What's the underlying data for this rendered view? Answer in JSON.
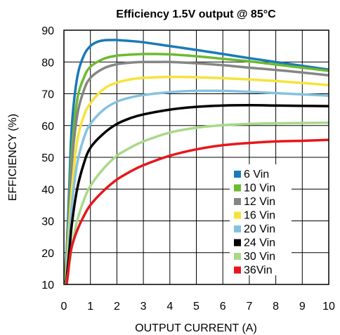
{
  "chart_data": {
    "type": "line",
    "title": "Efficiency 1.5V output @ 85°C",
    "xlabel": "OUTPUT CURRENT (A)",
    "ylabel": "EFFICIENCY (%)",
    "xlim": [
      0,
      10
    ],
    "ylim": [
      10,
      90
    ],
    "xticks": [
      "0",
      "1",
      "2",
      "3",
      "4",
      "5",
      "6",
      "7",
      "8",
      "9",
      "10"
    ],
    "yticks": [
      "10",
      "20",
      "30",
      "40",
      "50",
      "60",
      "70",
      "80",
      "90"
    ],
    "grid": true,
    "legend_position": "center-right",
    "series": [
      {
        "name": "6 Vin",
        "color": "#1a7ab8",
        "x": [
          0.05,
          0.1,
          0.2,
          0.3,
          0.5,
          0.75,
          1,
          1.25,
          1.5,
          1.75,
          2,
          2.5,
          3,
          4,
          5,
          6,
          7,
          8,
          9,
          10
        ],
        "y": [
          13,
          20,
          40,
          60,
          75,
          82,
          85,
          86.3,
          86.8,
          86.9,
          86.9,
          86.6,
          86.2,
          85,
          83.8,
          82.5,
          81.2,
          80,
          78.8,
          77.6
        ]
      },
      {
        "name": "10 Vin",
        "color": "#6cbb30",
        "x": [
          0.05,
          0.1,
          0.2,
          0.3,
          0.5,
          0.75,
          1,
          1.5,
          2,
          2.5,
          3,
          3.5,
          4,
          5,
          6,
          7,
          8,
          9,
          10
        ],
        "y": [
          12,
          18,
          35,
          52,
          68,
          75,
          78.5,
          81,
          82,
          82.3,
          82.5,
          82.5,
          82.4,
          81.8,
          81,
          80.2,
          79.2,
          78.2,
          77.2
        ]
      },
      {
        "name": "12 Vin",
        "color": "#858585",
        "x": [
          0.05,
          0.1,
          0.2,
          0.3,
          0.5,
          0.75,
          1,
          1.5,
          2,
          2.5,
          3,
          3.5,
          4,
          5,
          6,
          7,
          8,
          9,
          10
        ],
        "y": [
          11,
          16,
          32,
          48,
          63,
          71,
          75,
          78,
          79.3,
          79.8,
          80,
          80,
          80,
          79.6,
          79,
          78.2,
          77.5,
          76.7,
          75.8
        ]
      },
      {
        "name": "16 Vin",
        "color": "#f6e33a",
        "x": [
          0.05,
          0.1,
          0.2,
          0.3,
          0.5,
          0.75,
          1,
          1.5,
          2,
          2.5,
          3,
          4,
          5,
          6,
          7,
          8,
          9,
          10
        ],
        "y": [
          11,
          15,
          28,
          40,
          55,
          63,
          67,
          71.5,
          73.5,
          74.5,
          75,
          75.3,
          75.2,
          74.9,
          74.5,
          74,
          73.4,
          72.7
        ]
      },
      {
        "name": "20 Vin",
        "color": "#85c2e0",
        "x": [
          0.05,
          0.1,
          0.2,
          0.3,
          0.5,
          0.75,
          1,
          1.5,
          2,
          2.5,
          3,
          4,
          5,
          6,
          7,
          8,
          9,
          10
        ],
        "y": [
          10,
          13,
          24,
          35,
          48,
          56,
          60.5,
          65,
          67.5,
          68.8,
          69.6,
          70.5,
          70.9,
          70.9,
          70.6,
          70.2,
          69.8,
          69.4
        ]
      },
      {
        "name": "24 Vin",
        "color": "#000000",
        "x": [
          0.05,
          0.1,
          0.2,
          0.3,
          0.5,
          0.75,
          1,
          1.5,
          2,
          2.5,
          3,
          4,
          5,
          6,
          7,
          8,
          9,
          10
        ],
        "y": [
          10,
          12,
          20,
          29,
          40,
          48,
          53,
          57.5,
          60.5,
          62.3,
          63.5,
          65,
          65.9,
          66.3,
          66.4,
          66.3,
          66.2,
          66.1
        ]
      },
      {
        "name": "30 Vin",
        "color": "#a8d98a",
        "x": [
          0.05,
          0.1,
          0.2,
          0.3,
          0.5,
          0.75,
          1,
          1.5,
          2,
          2.5,
          3,
          4,
          5,
          6,
          7,
          8,
          9,
          10
        ],
        "y": [
          10,
          11,
          16,
          22,
          30,
          36.5,
          41,
          46.5,
          50.5,
          53,
          55,
          57.8,
          59.3,
          60.1,
          60.5,
          60.7,
          60.8,
          60.9
        ]
      },
      {
        "name": "36Vin",
        "color": "#e8161b",
        "x": [
          0.1,
          0.15,
          0.2,
          0.3,
          0.5,
          0.75,
          1,
          1.5,
          2,
          2.5,
          3,
          4,
          5,
          6,
          7,
          8,
          9,
          10
        ],
        "y": [
          10,
          13,
          17,
          22,
          27,
          31.5,
          35,
          39.5,
          43,
          45.5,
          47.5,
          50.5,
          52.5,
          53.8,
          54.5,
          55,
          55.2,
          55.5
        ]
      }
    ]
  }
}
